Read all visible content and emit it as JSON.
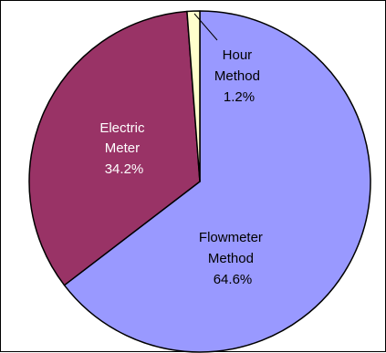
{
  "chart_data": {
    "type": "pie",
    "slices": [
      {
        "name": "Flowmeter Method",
        "label_lines": [
          "Flowmeter",
          "Method",
          "64.6%"
        ],
        "value": 64.6,
        "color": "#9999FF"
      },
      {
        "name": "Electric Meter",
        "label_lines": [
          "Electric",
          "Meter",
          "34.2%"
        ],
        "value": 34.2,
        "color": "#993366"
      },
      {
        "name": "Hour Method",
        "label_lines": [
          "Hour",
          "Method",
          "1.2%"
        ],
        "value": 1.2,
        "color": "#FFFFCC"
      }
    ],
    "slice_edge_color": "#000000",
    "leader_line_color": "#000000"
  }
}
